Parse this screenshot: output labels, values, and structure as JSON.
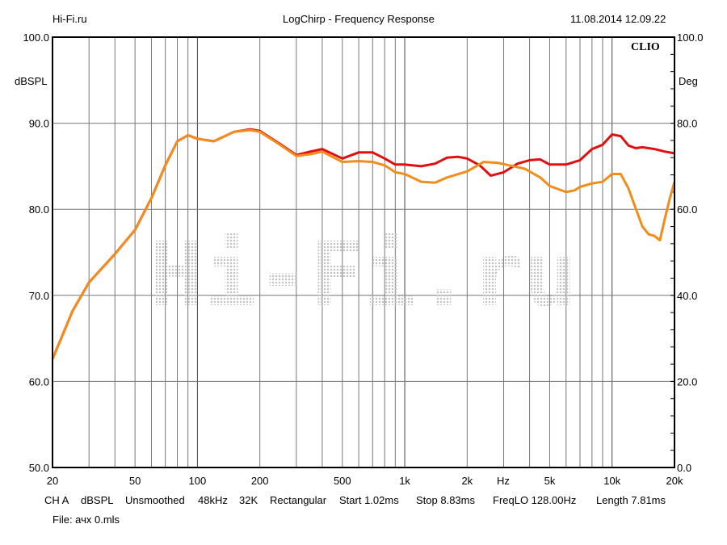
{
  "header": {
    "left": "Hi-Fi.ru",
    "title": "LogChirp - Frequency Response",
    "datetime": "11.08.2014 12.09.22"
  },
  "brand": "CLIO",
  "watermark": "Hi-Fi.ru",
  "footer": {
    "params": [
      "CH A",
      "dBSPL",
      "Unsmoothed",
      "48kHz",
      "32K",
      "Rectangular",
      "Start 1.02ms",
      "Stop 8.83ms",
      "FreqLO 128.00Hz",
      "Length 7.81ms"
    ],
    "file": "File: ачх 0.mls"
  },
  "chart_data": {
    "type": "line",
    "title": "LogChirp - Frequency Response",
    "xlabel": "Hz",
    "ylabel": "dBSPL",
    "y2label": "Deg",
    "xscale": "log",
    "xlim": [
      20,
      20000
    ],
    "ylim": [
      50,
      100
    ],
    "y2lim": [
      0,
      100
    ],
    "grid": true,
    "xticks": [
      {
        "v": 20,
        "l": "20"
      },
      {
        "v": 50,
        "l": "50"
      },
      {
        "v": 100,
        "l": "100"
      },
      {
        "v": 200,
        "l": "200"
      },
      {
        "v": 500,
        "l": "500"
      },
      {
        "v": 1000,
        "l": "1k"
      },
      {
        "v": 2000,
        "l": "2k"
      },
      {
        "v": 5000,
        "l": "5k"
      },
      {
        "v": 10000,
        "l": "10k"
      },
      {
        "v": 20000,
        "l": "20k"
      }
    ],
    "yticks": [
      {
        "v": 50,
        "l": "50.0"
      },
      {
        "v": 60,
        "l": "60.0"
      },
      {
        "v": 70,
        "l": "70.0"
      },
      {
        "v": 80,
        "l": "80.0"
      },
      {
        "v": 90,
        "l": "90.0"
      },
      {
        "v": 100,
        "l": "100.0"
      }
    ],
    "y2ticks": [
      "0.0",
      "20.0",
      "40.0",
      "60.0",
      "80.0",
      "100.0"
    ],
    "series": [
      {
        "name": "red",
        "color": "#e01010",
        "x": [
          20,
          25,
          30,
          40,
          50,
          60,
          70,
          80,
          90,
          100,
          120,
          150,
          180,
          200,
          250,
          300,
          350,
          400,
          500,
          600,
          700,
          800,
          900,
          1000,
          1200,
          1400,
          1600,
          1800,
          2000,
          2300,
          2600,
          3000,
          3500,
          4000,
          4500,
          5000,
          6000,
          7000,
          8000,
          9000,
          10000,
          11000,
          12000,
          13000,
          14000,
          16000,
          18000,
          20000
        ],
        "y": [
          62.6,
          68.2,
          71.5,
          74.8,
          77.6,
          81.3,
          85.1,
          87.9,
          88.6,
          88.2,
          87.9,
          89.0,
          89.3,
          89.1,
          87.6,
          86.3,
          86.7,
          87.0,
          85.9,
          86.6,
          86.6,
          85.9,
          85.2,
          85.2,
          85.0,
          85.3,
          86.0,
          86.1,
          85.9,
          85.1,
          83.9,
          84.3,
          85.3,
          85.7,
          85.8,
          85.2,
          85.2,
          85.7,
          87.0,
          87.5,
          88.7,
          88.5,
          87.4,
          87.1,
          87.2,
          87.0,
          86.7,
          86.5
        ]
      },
      {
        "name": "orange",
        "color": "#f28c1a",
        "x": [
          20,
          25,
          30,
          40,
          50,
          60,
          70,
          80,
          90,
          100,
          120,
          150,
          180,
          200,
          250,
          300,
          350,
          400,
          500,
          600,
          700,
          800,
          900,
          1000,
          1200,
          1400,
          1600,
          2000,
          2400,
          2800,
          3200,
          3800,
          4500,
          5000,
          6000,
          6600,
          7000,
          8000,
          9000,
          10000,
          11000,
          12000,
          13000,
          14000,
          15000,
          16000,
          17000,
          18000,
          19000,
          20000
        ],
        "y": [
          62.6,
          68.2,
          71.5,
          74.8,
          77.6,
          81.3,
          85.1,
          87.9,
          88.6,
          88.2,
          87.9,
          89.0,
          89.2,
          89.0,
          87.5,
          86.2,
          86.4,
          86.7,
          85.5,
          85.6,
          85.5,
          85.1,
          84.3,
          84.1,
          83.2,
          83.1,
          83.7,
          84.4,
          85.5,
          85.4,
          85.1,
          84.7,
          83.7,
          82.7,
          82.0,
          82.2,
          82.6,
          83.0,
          83.2,
          84.1,
          84.1,
          82.4,
          80.1,
          78.0,
          77.1,
          76.9,
          76.4,
          79.0,
          81.3,
          83.2
        ]
      }
    ]
  }
}
